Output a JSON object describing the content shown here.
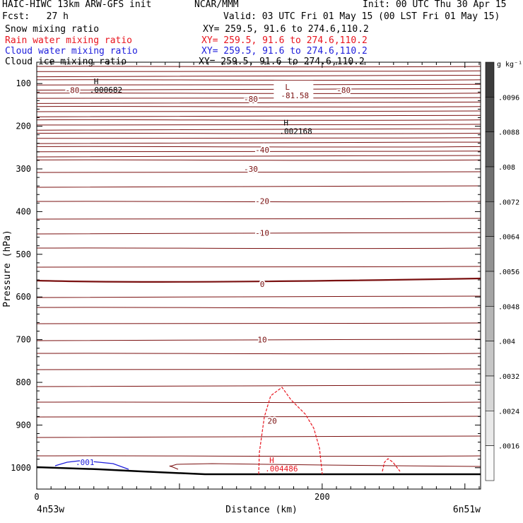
{
  "header": {
    "model": "HAIC-HIWC 13km ARW-GFS init",
    "org": "NCAR/MMM",
    "init": "Init: 00 UTC Thu 30 Apr 15",
    "fcst": "Fcst:   27 h",
    "valid": "Valid: 03 UTC Fri 01 May 15 (00 LST Fri 01 May 15)",
    "fields": [
      {
        "label": "Snow mixing ratio",
        "xy": "XY= 259.5, 91.6 to 274.6,110.2",
        "color": "#000000"
      },
      {
        "label": "Rain water mixing ratio",
        "xy": "XY= 259.5, 91.6 to 274.6,110.2",
        "color": "#e8141e"
      },
      {
        "label": "Cloud water mixing ratio",
        "xy": "XY= 259.5, 91.6 to 274.6,110.2",
        "color": "#1e1edc"
      },
      {
        "label": "Cloud ice mixing ratio",
        "xy": "XY= 259.5, 91.6 to 274.6,110.2",
        "color": "#000000"
      }
    ]
  },
  "chart_data": {
    "type": "contour",
    "ylabel": "Pressure (hPa)",
    "xlabel": "Distance (km)",
    "x_ticks": [
      0,
      200
    ],
    "y_ticks": [
      100,
      200,
      300,
      400,
      500,
      600,
      700,
      800,
      900,
      1000
    ],
    "xlim": [
      0,
      311
    ],
    "ylim": [
      50,
      1050
    ],
    "endpoints": {
      "left": "4n53w",
      "right": "6n51w"
    },
    "colorbar": {
      "units": "g kg⁻¹",
      "ticks": [
        ".0096",
        ".0088",
        ".008",
        ".0072",
        ".0064",
        ".0056",
        ".0048",
        ".004",
        ".0032",
        ".0024",
        ".0016"
      ]
    },
    "temperature_contours": [
      {
        "label": "-80",
        "x": 25,
        "p": 115
      },
      {
        "label": "-80",
        "x": 150,
        "p": 136
      },
      {
        "label": "-80",
        "x": 215,
        "p": 115
      },
      {
        "label": "-40",
        "x": 158,
        "p": 255
      },
      {
        "label": "-30",
        "x": 150,
        "p": 300
      },
      {
        "label": "-20",
        "x": 158,
        "p": 375
      },
      {
        "label": "-10",
        "x": 158,
        "p": 450
      },
      {
        "label": "0",
        "x": 158,
        "p": 570
      },
      {
        "label": "10",
        "x": 158,
        "p": 700
      },
      {
        "label": "20",
        "x": 165,
        "p": 890
      }
    ],
    "extrema": [
      {
        "type": "L",
        "value": "-81.58",
        "x": 174,
        "p": 116
      },
      {
        "type": "H",
        "value": ".000682",
        "x": 40,
        "p": 103
      },
      {
        "type": "H",
        "value": ".002168",
        "x": 173,
        "p": 200
      },
      {
        "type": "H",
        "value": ".004486",
        "x": 163,
        "p": 990
      }
    ],
    "cloud_water_label": ".001",
    "rain_contour_peak_p": 820
  }
}
